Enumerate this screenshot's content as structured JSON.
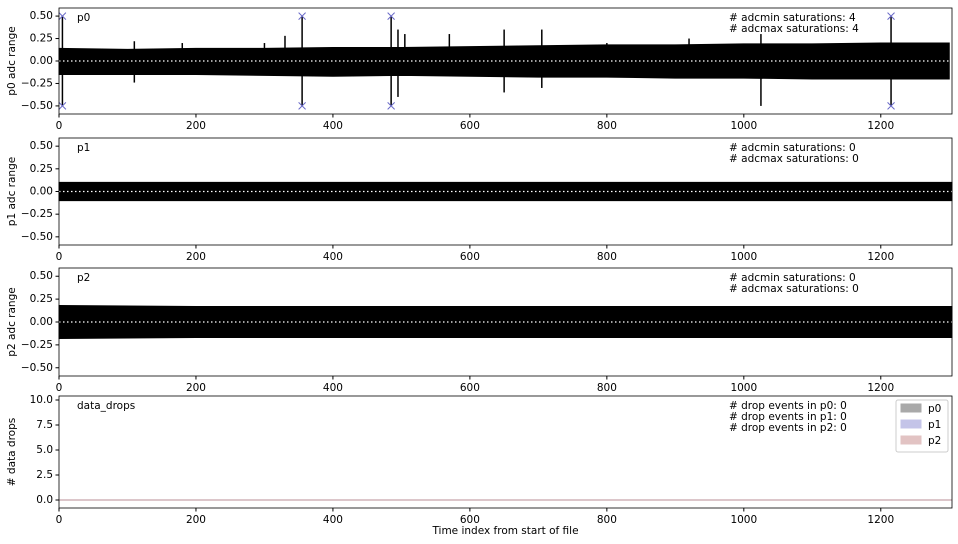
{
  "chart_data": [
    {
      "type": "band",
      "ylabel": "p0 adc range",
      "label": "p0",
      "annotations": [
        "# adcmin saturations: 4",
        "# adcmax saturations: 4"
      ],
      "xlim": [
        0,
        1304
      ],
      "xticks": [
        0,
        200,
        400,
        600,
        800,
        1000,
        1200
      ],
      "ylim": [
        -0.59,
        0.59
      ],
      "yticks": [
        {
          "value": -0.5,
          "label": "−0.50"
        },
        {
          "value": -0.25,
          "label": "−0.25"
        },
        {
          "value": 0,
          "label": "0.00"
        },
        {
          "value": 0.25,
          "label": "0.25"
        },
        {
          "value": 0.5,
          "label": "0.50"
        }
      ],
      "hline": 0,
      "color": "#000000",
      "band": {
        "x": [
          0,
          100,
          200,
          300,
          400,
          500,
          600,
          700,
          800,
          900,
          1000,
          1100,
          1200,
          1300
        ],
        "upper": [
          0.14,
          0.13,
          0.14,
          0.14,
          0.15,
          0.15,
          0.16,
          0.17,
          0.18,
          0.18,
          0.19,
          0.19,
          0.2,
          0.2
        ],
        "lower": [
          -0.15,
          -0.15,
          -0.15,
          -0.16,
          -0.17,
          -0.16,
          -0.17,
          -0.18,
          -0.18,
          -0.19,
          -0.19,
          -0.2,
          -0.2,
          -0.2
        ]
      },
      "spikes": {
        "x": [
          5,
          5,
          110,
          110,
          180,
          300,
          330,
          355,
          355,
          485,
          485,
          495,
          495,
          505,
          570,
          650,
          650,
          705,
          705,
          800,
          920,
          1025,
          1025,
          1215,
          1215
        ],
        "values": [
          0.5,
          -0.5,
          0.22,
          -0.24,
          0.2,
          0.2,
          0.28,
          0.5,
          -0.5,
          0.5,
          -0.5,
          0.35,
          -0.4,
          0.3,
          0.3,
          0.35,
          -0.35,
          0.35,
          -0.3,
          0.2,
          0.25,
          0.3,
          -0.5,
          0.5,
          -0.5
        ]
      },
      "markers": {
        "color": "#6a6ac8",
        "x": [
          5,
          5,
          355,
          355,
          485,
          485,
          1215,
          1215
        ],
        "values": [
          0.5,
          -0.5,
          0.5,
          -0.5,
          0.5,
          -0.5,
          0.5,
          -0.5
        ]
      }
    },
    {
      "type": "band",
      "ylabel": "p1 adc range",
      "label": "p1",
      "annotations": [
        "# adcmin saturations: 0",
        "# adcmax saturations: 0"
      ],
      "xlim": [
        0,
        1304
      ],
      "xticks": [
        0,
        200,
        400,
        600,
        800,
        1000,
        1200
      ],
      "ylim": [
        -0.59,
        0.59
      ],
      "yticks": [
        {
          "value": -0.5,
          "label": "−0.50"
        },
        {
          "value": -0.25,
          "label": "−0.25"
        },
        {
          "value": 0,
          "label": "0.00"
        },
        {
          "value": 0.25,
          "label": "0.25"
        },
        {
          "value": 0.5,
          "label": "0.50"
        }
      ],
      "hline": 0,
      "color": "#000000",
      "band": {
        "x": [
          0,
          200,
          400,
          600,
          800,
          1000,
          1200,
          1304
        ],
        "upper": [
          0.1,
          0.1,
          0.1,
          0.1,
          0.1,
          0.1,
          0.1,
          0.1
        ],
        "lower": [
          -0.1,
          -0.1,
          -0.1,
          -0.1,
          -0.1,
          -0.1,
          -0.1,
          -0.1
        ]
      }
    },
    {
      "type": "band",
      "ylabel": "p2 adc range",
      "label": "p2",
      "annotations": [
        "# adcmin saturations: 0",
        "# adcmax saturations: 0"
      ],
      "xlim": [
        0,
        1304
      ],
      "xticks": [
        0,
        200,
        400,
        600,
        800,
        1000,
        1200
      ],
      "ylim": [
        -0.59,
        0.59
      ],
      "yticks": [
        {
          "value": -0.5,
          "label": "−0.50"
        },
        {
          "value": -0.25,
          "label": "−0.25"
        },
        {
          "value": 0,
          "label": "0.00"
        },
        {
          "value": 0.25,
          "label": "0.25"
        },
        {
          "value": 0.5,
          "label": "0.50"
        }
      ],
      "hline": 0,
      "color": "#000000",
      "band": {
        "x": [
          0,
          200,
          400,
          600,
          800,
          1000,
          1200,
          1304
        ],
        "upper": [
          0.18,
          0.17,
          0.17,
          0.17,
          0.17,
          0.17,
          0.17,
          0.17
        ],
        "lower": [
          -0.18,
          -0.17,
          -0.17,
          -0.17,
          -0.17,
          -0.17,
          -0.17,
          -0.17
        ]
      }
    },
    {
      "type": "line",
      "ylabel": "# data drops",
      "xlabel": "Time index from start of file",
      "label": "data_drops",
      "annotations": [
        "# drop events in p0: 0",
        "# drop events in p1: 0",
        "# drop events in p2: 0"
      ],
      "xlim": [
        0,
        1304
      ],
      "xticks": [
        0,
        200,
        400,
        600,
        800,
        1000,
        1200
      ],
      "ylim": [
        -0.8,
        10.4
      ],
      "yticks": [
        {
          "value": 0,
          "label": "0.0"
        },
        {
          "value": 2.5,
          "label": "2.5"
        },
        {
          "value": 5,
          "label": "5.0"
        },
        {
          "value": 7.5,
          "label": "7.5"
        },
        {
          "value": 10,
          "label": "10.0"
        }
      ],
      "legend": "upper right",
      "x": [
        0,
        1304
      ],
      "series": [
        {
          "name": "p0",
          "color": "#a9a9a9",
          "values": [
            0,
            0
          ]
        },
        {
          "name": "p1",
          "color": "#c4c4e8",
          "values": [
            0,
            0
          ]
        },
        {
          "name": "p2",
          "color": "#e2c3c3",
          "values": [
            0,
            0
          ]
        }
      ]
    }
  ]
}
